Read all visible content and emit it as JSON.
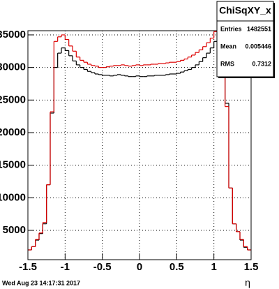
{
  "chart_data": {
    "type": "histogram",
    "x_label": "η",
    "footer": "Wed Aug 23 14:17:31 2017",
    "bins": [
      -1.5,
      -1.45,
      -1.4,
      -1.35,
      -1.3,
      -1.25,
      -1.2,
      -1.15,
      -1.1,
      -1.05,
      -1.0,
      -0.95,
      -0.9,
      -0.85,
      -0.8,
      -0.75,
      -0.7,
      -0.65,
      -0.6,
      -0.55,
      -0.5,
      -0.45,
      -0.4,
      -0.35,
      -0.3,
      -0.25,
      -0.2,
      -0.15,
      -0.1,
      -0.05,
      0,
      0.05,
      0.1,
      0.15,
      0.2,
      0.25,
      0.3,
      0.35,
      0.4,
      0.45,
      0.5,
      0.55,
      0.6,
      0.65,
      0.7,
      0.75,
      0.8,
      0.85,
      0.9,
      0.95,
      1.0,
      1.05,
      1.1,
      1.15,
      1.2,
      1.25,
      1.3,
      1.35,
      1.4,
      1.45,
      1.5
    ],
    "series": [
      {
        "color": "#000000",
        "values": [
          2000,
          2500,
          3500,
          4500,
          6000,
          12000,
          23000,
          30000,
          32200,
          33000,
          32600,
          31800,
          31000,
          30400,
          30000,
          29700,
          29400,
          29200,
          29000,
          28900,
          28800,
          28800,
          28700,
          28800,
          28900,
          28800,
          28700,
          28600,
          28600,
          28700,
          28600,
          28600,
          28700,
          28700,
          28800,
          28800,
          28800,
          28900,
          29000,
          29000,
          29100,
          29300,
          29500,
          29700,
          30000,
          30400,
          30900,
          31500,
          32200,
          33000,
          34000,
          33500,
          30000,
          24500,
          11500,
          6000,
          4800,
          3500,
          2400,
          2000
        ]
      },
      {
        "color": "#dd0000",
        "values": [
          2000,
          2500,
          3600,
          4600,
          6200,
          12000,
          23200,
          34000,
          34700,
          35000,
          34300,
          33300,
          32500,
          31600,
          31100,
          30800,
          30500,
          30300,
          30200,
          30000,
          30000,
          30100,
          30200,
          30300,
          30300,
          30400,
          30300,
          30200,
          30300,
          30400,
          30300,
          30400,
          30400,
          30500,
          30500,
          30600,
          30600,
          30700,
          30800,
          30800,
          30900,
          31100,
          31300,
          31600,
          31900,
          32300,
          32700,
          33200,
          33800,
          34500,
          35500,
          35200,
          31000,
          24000,
          11500,
          6000,
          4800,
          3600,
          2500,
          2000
        ]
      }
    ],
    "xlim": [
      -1.5,
      1.5
    ],
    "xticks": [
      -1.5,
      -1,
      -0.5,
      0,
      0.5,
      1,
      1.5
    ],
    "ylim": [
      500,
      35640
    ],
    "yticks": [
      5000,
      10000,
      15000,
      20000,
      25000,
      30000,
      35000
    ],
    "grid": true,
    "stats": {
      "title": "ChiSqXY_x",
      "rows": [
        [
          "Entries",
          "1482551"
        ],
        [
          "Mean",
          "0.005446"
        ],
        [
          "RMS",
          "0.7312"
        ]
      ]
    }
  }
}
